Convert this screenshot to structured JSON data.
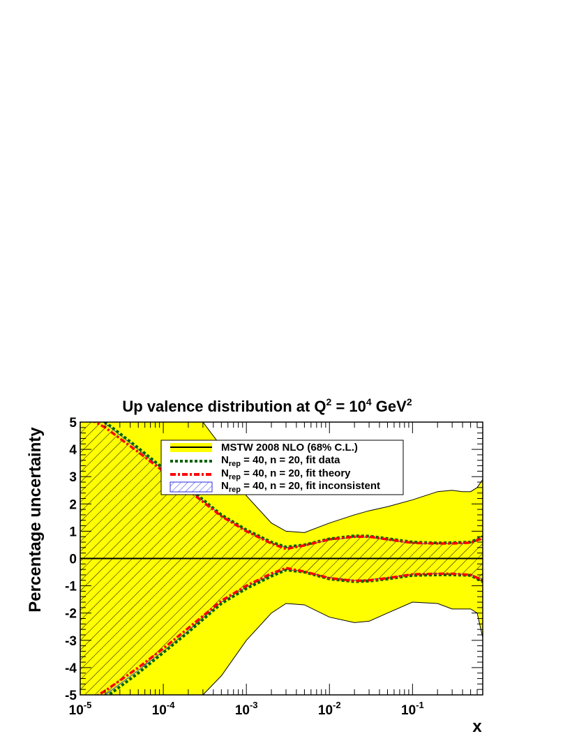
{
  "chart_data": {
    "type": "line",
    "title": {
      "prefix": "Up valence distribution at Q",
      "sup1": "2",
      "mid": " = 10",
      "sup2": "4",
      "suffix": " GeV",
      "sup3": "2"
    },
    "xlabel": "x",
    "ylabel": "Percentage uncertainty",
    "x_scale": "log",
    "xlim": [
      1e-05,
      0.7
    ],
    "ylim": [
      -5,
      5
    ],
    "x_ticks": [
      {
        "value": 1e-05,
        "base": "10",
        "exp": "-5"
      },
      {
        "value": 0.0001,
        "base": "10",
        "exp": "-4"
      },
      {
        "value": 0.001,
        "base": "10",
        "exp": "-3"
      },
      {
        "value": 0.01,
        "base": "10",
        "exp": "-2"
      },
      {
        "value": 0.1,
        "base": "10",
        "exp": "-1"
      }
    ],
    "y_ticks": [
      {
        "value": 5,
        "label": "5"
      },
      {
        "value": 4,
        "label": "4"
      },
      {
        "value": 3,
        "label": "3"
      },
      {
        "value": 2,
        "label": "2"
      },
      {
        "value": 1,
        "label": "1"
      },
      {
        "value": 0,
        "label": "0"
      },
      {
        "value": -1,
        "label": "-1"
      },
      {
        "value": -2,
        "label": "-2"
      },
      {
        "value": -3,
        "label": "-3"
      },
      {
        "value": -4,
        "label": "-4"
      },
      {
        "value": -5,
        "label": "-5"
      }
    ],
    "legend": {
      "placement": "top-center",
      "entries": [
        {
          "key": "mstw",
          "text": "MSTW 2008 NLO (68% C.L.)"
        },
        {
          "key": "fit_data",
          "pre": "N",
          "sub": "rep",
          "post": " = 40, n = 20, fit data"
        },
        {
          "key": "fit_theory",
          "pre": "N",
          "sub": "rep",
          "post": " = 40, n = 20, fit theory"
        },
        {
          "key": "fit_inconsistent",
          "pre": "N",
          "sub": "rep",
          "post": " = 40, n = 20, fit inconsistent"
        }
      ]
    },
    "colors": {
      "mstw_band": "#ffff00",
      "fit_data": "#006400",
      "fit_theory": "#ff0000",
      "inconsistent_hatch": "#2a2ae0",
      "band_hatch": "#000000"
    },
    "series": [
      {
        "name": "MSTW 2008 NLO (68% C.L.)",
        "style": "filled-band",
        "x": [
          1e-05,
          0.0001,
          0.0002,
          0.0003,
          0.0005,
          0.001,
          0.002,
          0.003,
          0.005,
          0.01,
          0.02,
          0.03,
          0.05,
          0.1,
          0.2,
          0.3,
          0.4,
          0.5,
          0.6,
          0.7
        ],
        "upper": [
          5,
          5,
          5,
          5,
          4.1,
          2.3,
          1.3,
          1.0,
          0.95,
          1.3,
          1.6,
          1.75,
          1.9,
          2.15,
          2.45,
          2.5,
          2.45,
          2.45,
          2.6,
          2.9
        ],
        "lower": [
          -5,
          -5,
          -5,
          -5,
          -4.3,
          -3.0,
          -2.0,
          -1.65,
          -1.7,
          -2.15,
          -2.35,
          -2.3,
          -2.0,
          -1.6,
          -1.65,
          -1.85,
          -1.85,
          -1.85,
          -2.0,
          -2.9
        ]
      },
      {
        "name": "N_rep = 40, n = 20, fit data",
        "style": "dotted",
        "x": [
          1e-05,
          2e-05,
          5e-05,
          0.0001,
          0.0002,
          0.0005,
          0.001,
          0.002,
          0.003,
          0.005,
          0.01,
          0.02,
          0.03,
          0.05,
          0.1,
          0.2,
          0.3,
          0.5,
          0.7
        ],
        "upper": [
          5.6,
          5.0,
          4.05,
          3.3,
          2.6,
          1.6,
          1.05,
          0.6,
          0.42,
          0.5,
          0.72,
          0.83,
          0.82,
          0.73,
          0.6,
          0.57,
          0.58,
          0.6,
          0.8
        ],
        "lower": [
          -5.6,
          -5.1,
          -4.2,
          -3.45,
          -2.7,
          -1.65,
          -1.1,
          -0.65,
          -0.42,
          -0.5,
          -0.75,
          -0.85,
          -0.83,
          -0.75,
          -0.62,
          -0.6,
          -0.6,
          -0.62,
          -0.85
        ]
      },
      {
        "name": "N_rep = 40, n = 20, fit theory",
        "style": "dash-dot",
        "x": [
          1e-05,
          2e-05,
          5e-05,
          0.0001,
          0.0002,
          0.0005,
          0.001,
          0.002,
          0.003,
          0.005,
          0.01,
          0.02,
          0.03,
          0.05,
          0.1,
          0.2,
          0.3,
          0.5,
          0.7
        ],
        "upper": [
          5.3,
          4.8,
          3.9,
          3.2,
          2.5,
          1.55,
          1.0,
          0.55,
          0.35,
          0.48,
          0.7,
          0.8,
          0.8,
          0.7,
          0.57,
          0.55,
          0.55,
          0.58,
          0.75
        ],
        "lower": [
          -5.4,
          -4.85,
          -4.0,
          -3.3,
          -2.55,
          -1.55,
          -1.0,
          -0.55,
          -0.35,
          -0.48,
          -0.72,
          -0.82,
          -0.8,
          -0.72,
          -0.58,
          -0.56,
          -0.56,
          -0.6,
          -0.8
        ]
      },
      {
        "name": "N_rep = 40, n = 20, fit inconsistent",
        "style": "hatched-band",
        "x": [
          1e-05,
          2e-05,
          5e-05,
          0.0001,
          0.0002,
          0.0005,
          0.001,
          0.002,
          0.003,
          0.005,
          0.01,
          0.02,
          0.03,
          0.05,
          0.1,
          0.2,
          0.3,
          0.5,
          0.7
        ],
        "upper": [
          5.5,
          4.95,
          4.0,
          3.25,
          2.55,
          1.58,
          1.02,
          0.58,
          0.4,
          0.48,
          0.68,
          0.78,
          0.78,
          0.68,
          0.56,
          0.54,
          0.55,
          0.57,
          0.7
        ],
        "lower": [
          -5.5,
          -5.0,
          -4.1,
          -3.4,
          -2.65,
          -1.6,
          -1.05,
          -0.6,
          -0.4,
          -0.48,
          -0.7,
          -0.8,
          -0.78,
          -0.7,
          -0.58,
          -0.56,
          -0.56,
          -0.58,
          -0.75
        ]
      }
    ],
    "grid": false
  }
}
